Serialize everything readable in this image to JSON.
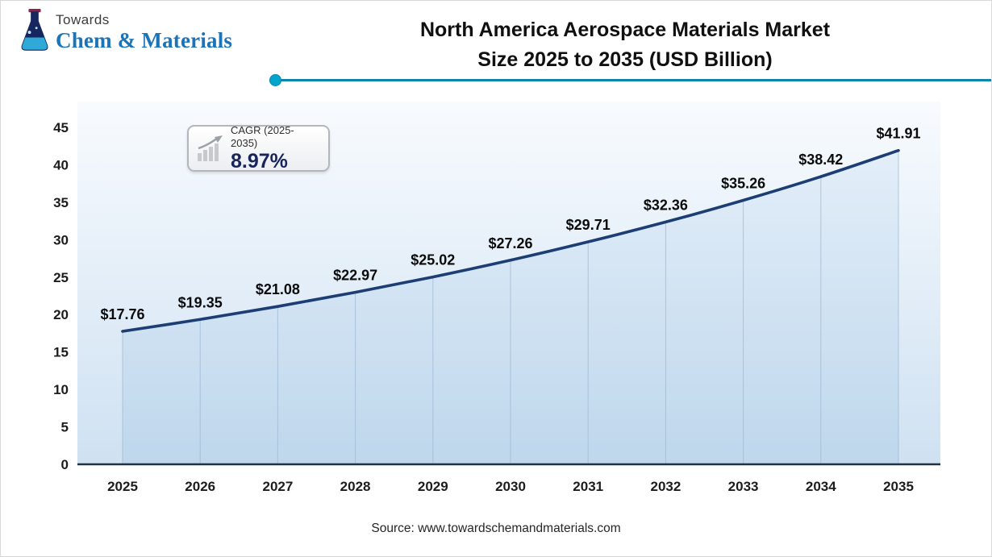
{
  "brand": {
    "top_text": "Towards",
    "name": "Chem & Materials"
  },
  "title": {
    "line1": "North America Aerospace Materials Market",
    "line2": "Size 2025 to 2035 (USD Billion)"
  },
  "cagr_badge": {
    "label": "CAGR (2025-2035)",
    "value": "8.97%"
  },
  "footer": {
    "source": "Source: www.towardschemandmaterials.com"
  },
  "chart_data": {
    "type": "area",
    "title": "North America Aerospace Materials Market Size 2025 to 2035 (USD Billion)",
    "categories": [
      "2025",
      "2026",
      "2027",
      "2028",
      "2029",
      "2030",
      "2031",
      "2032",
      "2033",
      "2034",
      "2035"
    ],
    "values": [
      17.76,
      19.35,
      21.08,
      22.97,
      25.02,
      27.26,
      29.71,
      32.36,
      35.26,
      38.42,
      41.91
    ],
    "point_labels": [
      "$17.76",
      "$19.35",
      "$21.08",
      "$22.97",
      "$25.02",
      "$27.26",
      "$29.71",
      "$32.36",
      "$35.26",
      "$38.42",
      "$41.91"
    ],
    "xlabel": "",
    "ylabel": "",
    "ylim": [
      0,
      45
    ],
    "ytick_step": 5,
    "grid": "vertical-at-points",
    "legend": "none",
    "cagr": "8.97%",
    "colors": {
      "line": "#1c3e74",
      "baseline": "#22313f",
      "grid": "#9db9d4",
      "plot_bg_top": "#f8fbfe",
      "plot_bg_bottom": "#cfe1f2",
      "area_top": "#e3eef9",
      "area_bottom": "#bed7ec",
      "accent": "#00a5cd",
      "brand_blue": "#1b74b8",
      "value_navy": "#18245c",
      "text": "#111111"
    }
  }
}
